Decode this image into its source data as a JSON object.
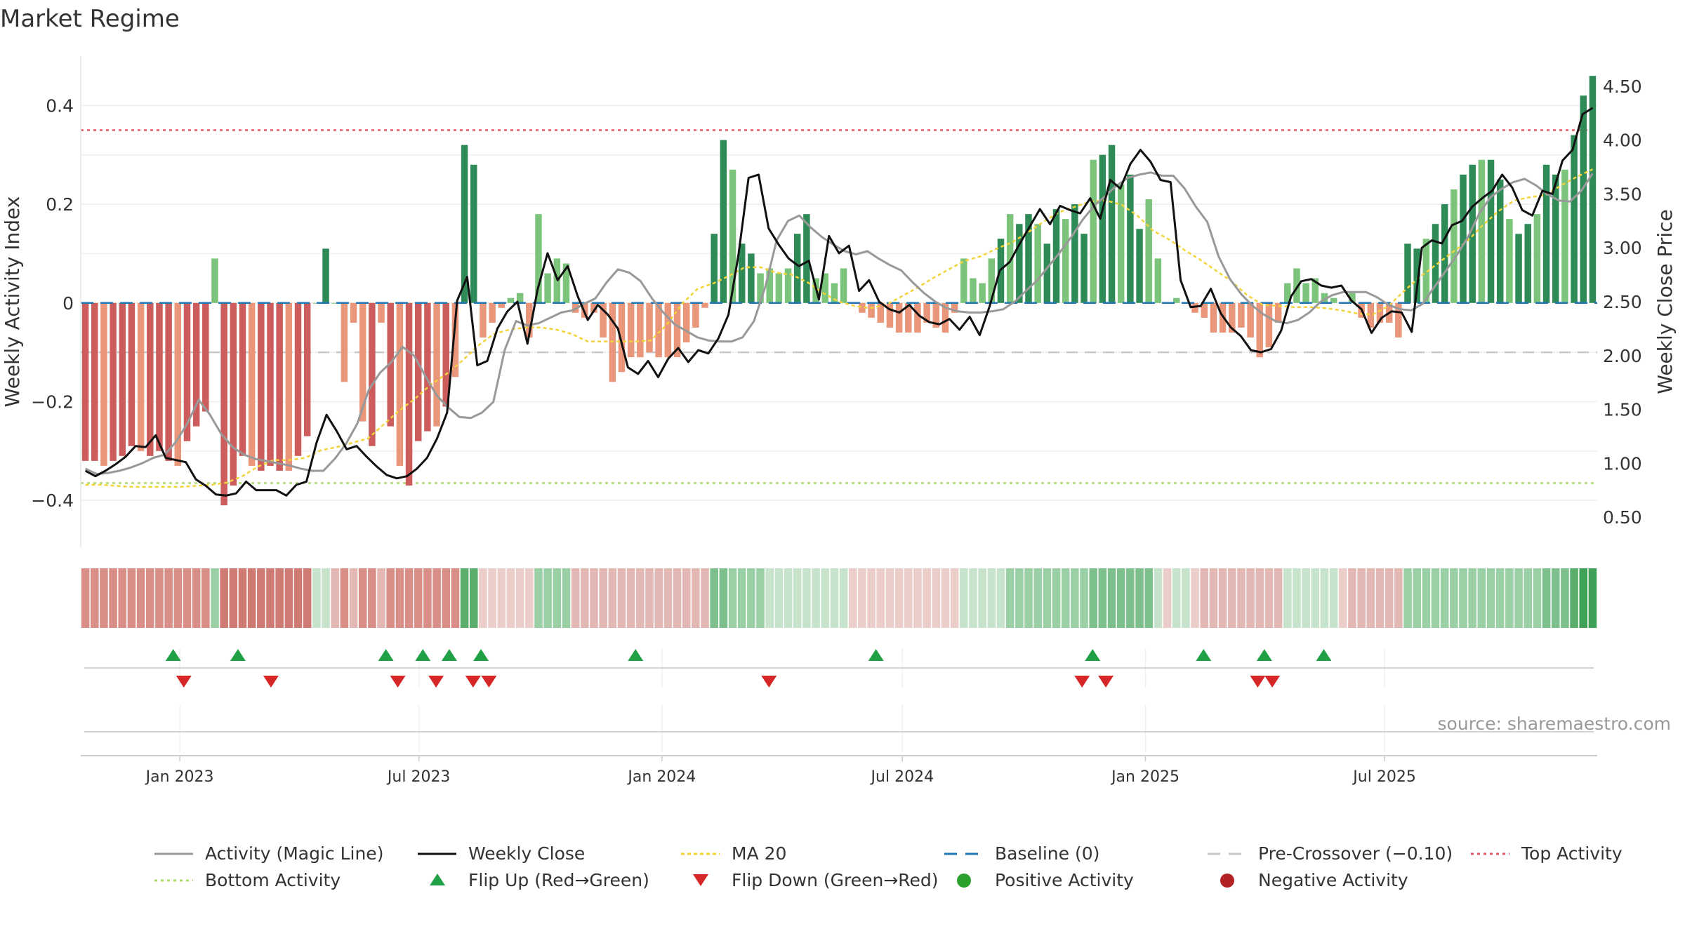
{
  "chart_data": {
    "type": "bar+line",
    "title": "Market Regime",
    "ylabel_left": "Weekly Activity Index",
    "ylabel_right": "Weekly Close Price",
    "ylim_left": [
      -0.495,
      0.5
    ],
    "ylim_right": [
      0.22,
      4.78
    ],
    "yticks_left": [
      {
        "v": 0.4,
        "label": "0.4"
      },
      {
        "v": 0.2,
        "label": "0.2"
      },
      {
        "v": 0,
        "label": "0"
      },
      {
        "v": -0.2,
        "label": "−0.2"
      },
      {
        "v": -0.4,
        "label": "−0.4"
      }
    ],
    "yticks_right": [
      {
        "v": 4.5,
        "label": "4.50"
      },
      {
        "v": 4.0,
        "label": "4.00"
      },
      {
        "v": 3.5,
        "label": "3.50"
      },
      {
        "v": 3.0,
        "label": "3.00"
      },
      {
        "v": 2.5,
        "label": "2.50"
      },
      {
        "v": 2.0,
        "label": "2.00"
      },
      {
        "v": 1.5,
        "label": "1.50"
      },
      {
        "v": 1.0,
        "label": "1.00"
      },
      {
        "v": 0.5,
        "label": "0.50"
      }
    ],
    "x_start_date": "2022-10-18",
    "xticks": [
      {
        "date": "2023-01-01",
        "label": "Jan 2023"
      },
      {
        "date": "2023-07-01",
        "label": "Jul 2023"
      },
      {
        "date": "2024-01-01",
        "label": "Jan 2024"
      },
      {
        "date": "2024-07-01",
        "label": "Jul 2024"
      },
      {
        "date": "2025-01-01",
        "label": "Jan 2025"
      },
      {
        "date": "2025-07-01",
        "label": "Jul 2025"
      }
    ],
    "reference_lines": {
      "top_activity": 0.35,
      "bottom_activity": -0.365,
      "pre_crossover": -0.1,
      "baseline": 0
    },
    "weekly_activity_index": [
      -0.32,
      -0.32,
      -0.33,
      -0.32,
      -0.31,
      -0.29,
      -0.3,
      -0.31,
      -0.3,
      -0.32,
      -0.33,
      -0.28,
      -0.25,
      -0.22,
      0.09,
      -0.41,
      -0.37,
      -0.31,
      -0.33,
      -0.34,
      -0.33,
      -0.34,
      -0.34,
      -0.31,
      -0.27,
      -0.0,
      0.11,
      -0.0,
      -0.16,
      -0.04,
      -0.24,
      -0.29,
      -0.04,
      -0.25,
      -0.33,
      -0.37,
      -0.28,
      -0.26,
      -0.25,
      -0.21,
      -0.15,
      0.32,
      0.28,
      -0.07,
      -0.04,
      -0.01,
      0.01,
      0.02,
      -0.07,
      0.18,
      0.06,
      0.09,
      0.08,
      -0.02,
      -0.03,
      -0.02,
      -0.07,
      -0.16,
      -0.14,
      -0.11,
      -0.11,
      -0.1,
      -0.11,
      -0.11,
      -0.11,
      -0.08,
      -0.05,
      -0.01,
      0.14,
      0.33,
      0.27,
      0.12,
      0.1,
      0.06,
      0.07,
      0.06,
      0.07,
      0.14,
      0.18,
      0.05,
      0.06,
      0.04,
      0.07,
      0.0,
      -0.02,
      -0.03,
      -0.04,
      -0.05,
      -0.06,
      -0.06,
      -0.06,
      -0.04,
      -0.05,
      -0.06,
      -0.02,
      0.09,
      0.05,
      0.04,
      0.09,
      0.13,
      0.18,
      0.16,
      0.18,
      0.16,
      0.12,
      0.19,
      0.17,
      0.2,
      0.14,
      0.29,
      0.3,
      0.32,
      0.24,
      0.26,
      0.15,
      0.21,
      0.09,
      0.0,
      0.01,
      0.0,
      -0.02,
      -0.03,
      -0.06,
      -0.06,
      -0.06,
      -0.05,
      -0.07,
      -0.11,
      -0.09,
      -0.04,
      0.04,
      0.07,
      0.04,
      0.05,
      0.02,
      0.01,
      0.0,
      0.02,
      -0.03,
      -0.05,
      -0.04,
      -0.04,
      -0.07,
      0.12,
      0.11,
      0.13,
      0.16,
      0.2,
      0.23,
      0.26,
      0.28,
      0.29,
      0.29,
      0.25,
      0.17,
      0.14,
      0.16,
      0.18,
      0.28,
      0.26,
      0.27,
      0.34,
      0.42,
      0.46
    ],
    "weekly_close": [
      0.93,
      0.88,
      0.93,
      0.99,
      1.06,
      1.16,
      1.15,
      1.26,
      1.05,
      1.03,
      1.01,
      0.85,
      0.79,
      0.71,
      0.7,
      0.72,
      0.83,
      0.75,
      0.75,
      0.75,
      0.7,
      0.8,
      0.83,
      1.19,
      1.45,
      1.3,
      1.13,
      1.16,
      1.06,
      0.97,
      0.89,
      0.86,
      0.88,
      0.95,
      1.05,
      1.23,
      1.47,
      2.51,
      2.73,
      1.91,
      1.95,
      2.25,
      2.41,
      2.5,
      2.11,
      2.61,
      2.95,
      2.7,
      2.83,
      2.55,
      2.33,
      2.47,
      2.38,
      2.25,
      1.89,
      1.83,
      1.95,
      1.8,
      1.97,
      2.07,
      1.94,
      2.05,
      2.02,
      2.16,
      2.38,
      2.94,
      3.65,
      3.68,
      3.18,
      3.03,
      2.9,
      2.83,
      2.88,
      2.52,
      3.11,
      2.95,
      3.02,
      2.6,
      2.7,
      2.5,
      2.43,
      2.4,
      2.47,
      2.37,
      2.31,
      2.29,
      2.34,
      2.24,
      2.36,
      2.19,
      2.46,
      2.79,
      2.87,
      3.04,
      3.2,
      3.36,
      3.22,
      3.39,
      3.35,
      3.32,
      3.46,
      3.27,
      3.63,
      3.55,
      3.78,
      3.91,
      3.8,
      3.63,
      3.61,
      2.7,
      2.45,
      2.46,
      2.62,
      2.39,
      2.26,
      2.18,
      2.05,
      2.03,
      2.06,
      2.23,
      2.55,
      2.69,
      2.71,
      2.65,
      2.63,
      2.65,
      2.51,
      2.43,
      2.21,
      2.35,
      2.41,
      2.4,
      2.22,
      3.0,
      3.07,
      3.04,
      3.21,
      3.25,
      3.38,
      3.46,
      3.53,
      3.68,
      3.56,
      3.35,
      3.3,
      3.53,
      3.5,
      3.81,
      3.91,
      4.24,
      4.3
    ],
    "activity_magic_line_price": [
      0.95,
      0.9,
      0.91,
      0.93,
      0.96,
      1.0,
      1.05,
      1.08,
      1.2,
      1.37,
      1.59,
      1.45,
      1.27,
      1.15,
      1.08,
      1.04,
      1.02,
      1.0,
      0.98,
      0.95,
      0.93,
      0.93,
      1.04,
      1.18,
      1.37,
      1.68,
      1.84,
      1.94,
      2.08,
      2.0,
      1.81,
      1.63,
      1.52,
      1.43,
      1.42,
      1.47,
      1.57,
      2.05,
      2.32,
      2.28,
      2.3,
      2.35,
      2.4,
      2.42,
      2.48,
      2.53,
      2.68,
      2.8,
      2.77,
      2.69,
      2.53,
      2.4,
      2.29,
      2.23,
      2.17,
      2.14,
      2.13,
      2.13,
      2.17,
      2.32,
      2.64,
      3.07,
      3.25,
      3.3,
      3.19,
      3.1,
      3.03,
      2.97,
      2.94,
      2.97,
      2.9,
      2.84,
      2.79,
      2.68,
      2.58,
      2.5,
      2.44,
      2.41,
      2.4,
      2.4,
      2.41,
      2.43,
      2.5,
      2.6,
      2.7,
      2.83,
      2.96,
      3.1,
      3.26,
      3.39,
      3.48,
      3.58,
      3.65,
      3.68,
      3.7,
      3.67,
      3.67,
      3.55,
      3.38,
      3.24,
      2.92,
      2.71,
      2.57,
      2.46,
      2.38,
      2.32,
      2.3,
      2.33,
      2.4,
      2.5,
      2.56,
      2.59,
      2.59,
      2.59,
      2.54,
      2.47,
      2.43,
      2.42,
      2.48,
      2.63,
      2.78,
      2.93,
      3.1,
      3.32,
      3.47,
      3.55,
      3.61,
      3.64,
      3.58,
      3.5,
      3.44,
      3.43,
      3.53,
      3.69
    ],
    "ma20_price": [
      0.8,
      0.8,
      0.79,
      0.78,
      0.78,
      0.78,
      0.78,
      0.79,
      0.8,
      0.82,
      0.88,
      0.97,
      1.03,
      1.03,
      1.05,
      1.12,
      1.15,
      1.19,
      1.23,
      1.36,
      1.49,
      1.6,
      1.73,
      1.83,
      1.95,
      2.09,
      2.2,
      2.24,
      2.26,
      2.26,
      2.24,
      2.2,
      2.13,
      2.13,
      2.13,
      2.13,
      2.14,
      2.28,
      2.48,
      2.62,
      2.67,
      2.74,
      2.82,
      2.82,
      2.77,
      2.75,
      2.68,
      2.58,
      2.5,
      2.46,
      2.44,
      2.47,
      2.55,
      2.63,
      2.72,
      2.8,
      2.88,
      2.92,
      2.99,
      3.05,
      3.14,
      3.24,
      3.33,
      3.38,
      3.43,
      3.44,
      3.4,
      3.3,
      3.16,
      3.08,
      2.98,
      2.89,
      2.79,
      2.69,
      2.56,
      2.47,
      2.46,
      2.45,
      2.45,
      2.44,
      2.42,
      2.39,
      2.38,
      2.46,
      2.6,
      2.73,
      2.84,
      2.95,
      3.06,
      3.21,
      3.34,
      3.44,
      3.47,
      3.49,
      3.58,
      3.66,
      3.73
    ],
    "state_strip_colors": [
      "#d98f87",
      "#d98f87",
      "#d98f87",
      "#d98f87",
      "#d98f87",
      "#d98f87",
      "#d98f87",
      "#d98f87",
      "#d98f87",
      "#d98f87",
      "#d98f87",
      "#d98f87",
      "#d98f87",
      "#d98f87",
      "#9bd0a6",
      "#cf7b74",
      "#cf7b74",
      "#cf7b74",
      "#cf7b74",
      "#cf7b74",
      "#cf7b74",
      "#cf7b74",
      "#cf7b74",
      "#cf7b74",
      "#cf7b74",
      "#c8e3cc",
      "#c8e3cc",
      "#e3b8b4",
      "#d98f87",
      "#e3b8b4",
      "#d98f87",
      "#d98f87",
      "#e3b8b4",
      "#d98f87",
      "#d98f87",
      "#d98f87",
      "#d98f87",
      "#d98f87",
      "#d98f87",
      "#d98f87",
      "#d98f87",
      "#5aaf6d",
      "#5aaf6d",
      "#ebcdca",
      "#ebcdca",
      "#ebcdca",
      "#ebcdca",
      "#ebcdca",
      "#ebcdca",
      "#9bd0a6",
      "#9bd0a6",
      "#9bd0a6",
      "#9bd0a6",
      "#e3b8b4",
      "#e3b8b4",
      "#e3b8b4",
      "#e3b8b4",
      "#e3b8b4",
      "#e3b8b4",
      "#e3b8b4",
      "#e3b8b4",
      "#e3b8b4",
      "#e3b8b4",
      "#e3b8b4",
      "#e3b8b4",
      "#e3b8b4",
      "#e3b8b4",
      "#e3b8b4",
      "#7ec08d",
      "#7ec08d",
      "#9bd0a6",
      "#9bd0a6",
      "#9bd0a6",
      "#9bd0a6",
      "#c8e3cc",
      "#c8e3cc",
      "#c8e3cc",
      "#c8e3cc",
      "#c8e3cc",
      "#c8e3cc",
      "#c8e3cc",
      "#c8e3cc",
      "#c8e3cc",
      "#ebcdca",
      "#ebcdca",
      "#ebcdca",
      "#ebcdca",
      "#ebcdca",
      "#ebcdca",
      "#ebcdca",
      "#ebcdca",
      "#ebcdca",
      "#ebcdca",
      "#ebcdca",
      "#ebcdca",
      "#c8e3cc",
      "#c8e3cc",
      "#c8e3cc",
      "#c8e3cc",
      "#c8e3cc",
      "#9bd0a6",
      "#9bd0a6",
      "#9bd0a6",
      "#9bd0a6",
      "#9bd0a6",
      "#9bd0a6",
      "#9bd0a6",
      "#9bd0a6",
      "#9bd0a6",
      "#7ec08d",
      "#7ec08d",
      "#7ec08d",
      "#7ec08d",
      "#7ec08d",
      "#7ec08d",
      "#7ec08d",
      "#c8e3cc",
      "#ebcdca",
      "#c8e3cc",
      "#c8e3cc",
      "#ebcdca",
      "#e3b8b4",
      "#e3b8b4",
      "#e3b8b4",
      "#e3b8b4",
      "#e3b8b4",
      "#e3b8b4",
      "#e3b8b4",
      "#e3b8b4",
      "#e3b8b4",
      "#c8e3cc",
      "#c8e3cc",
      "#c8e3cc",
      "#c8e3cc",
      "#c8e3cc",
      "#c8e3cc",
      "#ebcdca",
      "#e3b8b4",
      "#e3b8b4",
      "#e3b8b4",
      "#e3b8b4",
      "#e3b8b4",
      "#e3b8b4",
      "#9bd0a6",
      "#9bd0a6",
      "#9bd0a6",
      "#9bd0a6",
      "#9bd0a6",
      "#9bd0a6",
      "#9bd0a6",
      "#9bd0a6",
      "#9bd0a6",
      "#9bd0a6",
      "#9bd0a6",
      "#9bd0a6",
      "#9bd0a6",
      "#9bd0a6",
      "#9bd0a6",
      "#7ec08d",
      "#7ec08d",
      "#7ec08d",
      "#5aaf6d",
      "#3fa057",
      "#3fa057"
    ],
    "flip_up_dates": [
      "2022-12-27",
      "2023-02-14",
      "2023-06-06",
      "2023-07-04",
      "2023-07-24",
      "2023-08-17",
      "2023-12-12",
      "2024-06-11",
      "2024-11-22",
      "2025-02-14",
      "2025-04-01",
      "2025-05-16"
    ],
    "flip_down_dates": [
      "2023-01-04",
      "2023-03-11",
      "2023-06-15",
      "2023-07-14",
      "2023-08-11",
      "2023-08-23",
      "2024-03-22",
      "2024-11-14",
      "2024-12-02",
      "2025-03-27",
      "2025-04-07"
    ],
    "colors": {
      "strong_green": "#2e8b57",
      "light_green": "#7cc47c",
      "strong_red": "#cd5c5c",
      "light_red": "#e9967a",
      "magic_line": "#999999",
      "weekly_close": "#111111",
      "ma20": "#f2d43a",
      "baseline": "#1f77b4",
      "pre_crossover": "#c8c8c8",
      "top_activity": "#e05a6a",
      "bottom_activity": "#a8dc6a",
      "flip_up": "#22a046",
      "flip_down": "#d62728",
      "positive_activity": "#2ca02c",
      "negative_activity": "#b22222"
    },
    "legend": [
      {
        "key": "magic",
        "label": "Activity (Magic Line)",
        "symbol": "line-solid-gray"
      },
      {
        "key": "close",
        "label": "Weekly Close",
        "symbol": "line-solid-black"
      },
      {
        "key": "ma20",
        "label": "MA 20",
        "symbol": "line-dotted-yellow"
      },
      {
        "key": "baseline",
        "label": "Baseline (0)",
        "symbol": "line-dashed-blue"
      },
      {
        "key": "precross",
        "label": "Pre-Crossover (−0.10)",
        "symbol": "line-dashed-gray"
      },
      {
        "key": "top",
        "label": "Top Activity",
        "symbol": "line-dotted-red"
      },
      {
        "key": "bottom",
        "label": "Bottom Activity",
        "symbol": "line-dotted-green"
      },
      {
        "key": "flipup",
        "label": "Flip Up (Red→Green)",
        "symbol": "triangle-up-green"
      },
      {
        "key": "flipdown",
        "label": "Flip Down (Green→Red)",
        "symbol": "triangle-down-red"
      },
      {
        "key": "pos",
        "label": "Positive Activity",
        "symbol": "circle-green"
      },
      {
        "key": "neg",
        "label": "Negative Activity",
        "symbol": "circle-red"
      }
    ],
    "source": "source: sharemaestro.com"
  }
}
